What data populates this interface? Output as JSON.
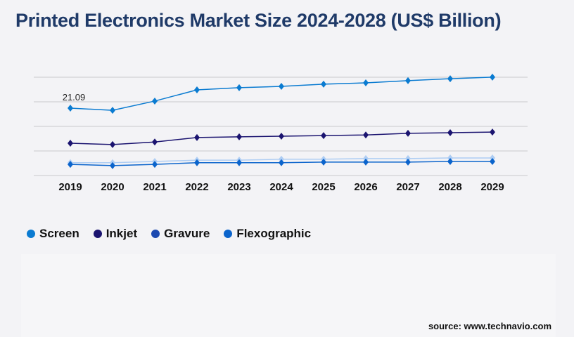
{
  "chart_data": {
    "type": "line",
    "title": "Printed Electronics Market Size 2024-2028 (US$ Billion)",
    "categories": [
      "2019",
      "2020",
      "2021",
      "2022",
      "2023",
      "2024",
      "2025",
      "2026",
      "2027",
      "2028",
      "2029"
    ],
    "ylim": [
      0,
      30.76
    ],
    "grid": true,
    "legend_position": "bottom-left",
    "annotations": [
      {
        "series": "Screen",
        "x": "2019",
        "label": "21.09"
      }
    ],
    "series": [
      {
        "name": "Screen",
        "color": "#0a7bd1",
        "values": [
          21.09,
          20.4,
          23.3,
          26.8,
          27.5,
          27.9,
          28.6,
          29.0,
          29.7,
          30.3,
          30.8
        ]
      },
      {
        "name": "Inkjet",
        "color": "#1b1470",
        "values": [
          10.1,
          9.7,
          10.5,
          11.9,
          12.1,
          12.3,
          12.5,
          12.7,
          13.2,
          13.4,
          13.6
        ]
      },
      {
        "name": "Gravure",
        "color": "#aecdf3",
        "legend_color": "#1b48b0",
        "values": [
          4.0,
          4.0,
          4.4,
          4.8,
          4.8,
          5.1,
          5.1,
          5.3,
          5.3,
          5.5,
          5.5
        ]
      },
      {
        "name": "Flexographic",
        "color": "#0b64cc",
        "values": [
          3.5,
          3.1,
          3.5,
          4.0,
          4.0,
          4.0,
          4.2,
          4.2,
          4.2,
          4.4,
          4.4
        ]
      }
    ]
  },
  "source": "source: www.technavio.com"
}
